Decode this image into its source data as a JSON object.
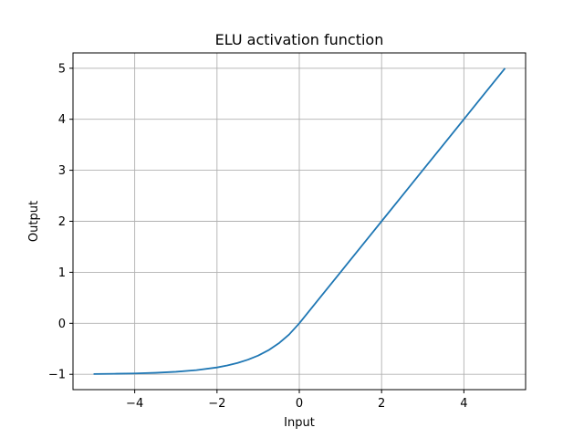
{
  "chart_data": {
    "type": "line",
    "title": "ELU activation function",
    "xlabel": "Input",
    "ylabel": "Output",
    "xlim": [
      -5.5,
      5.5
    ],
    "ylim": [
      -1.3,
      5.3
    ],
    "xticks": [
      -4,
      -2,
      0,
      2,
      4
    ],
    "yticks": [
      -1,
      0,
      1,
      2,
      3,
      4,
      5
    ],
    "xtick_labels": [
      "−4",
      "−2",
      "0",
      "2",
      "4"
    ],
    "ytick_labels": [
      "−1",
      "0",
      "1",
      "2",
      "3",
      "4",
      "5"
    ],
    "grid": true,
    "series": [
      {
        "color": "#1f77b4",
        "x": [
          -5,
          -4.5,
          -4,
          -3.5,
          -3,
          -2.5,
          -2,
          -1.75,
          -1.5,
          -1.25,
          -1,
          -0.75,
          -0.5,
          -0.25,
          0,
          0.5,
          1,
          1.5,
          2,
          2.5,
          3,
          3.5,
          4,
          4.5,
          5
        ],
        "y": [
          -0.993,
          -0.989,
          -0.982,
          -0.97,
          -0.95,
          -0.918,
          -0.865,
          -0.826,
          -0.777,
          -0.713,
          -0.632,
          -0.528,
          -0.393,
          -0.221,
          0,
          0.5,
          1,
          1.5,
          2,
          2.5,
          3,
          3.5,
          4,
          4.5,
          5
        ]
      }
    ]
  }
}
